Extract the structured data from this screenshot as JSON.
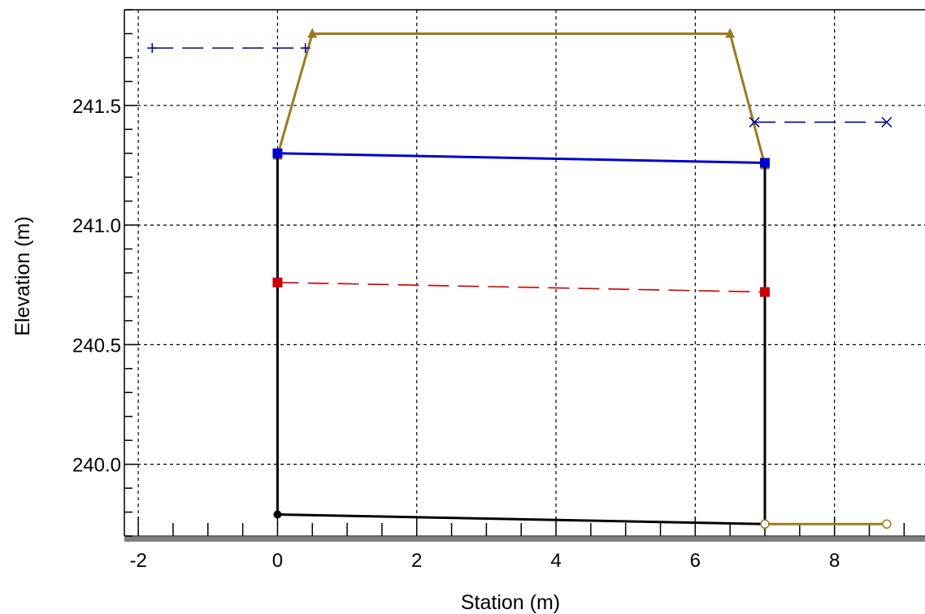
{
  "chart_data": {
    "type": "line",
    "xlabel": "Station (m)",
    "ylabel": "Elevation (m)",
    "xlim": [
      -2.2,
      9.3
    ],
    "ylim": [
      239.7,
      241.9
    ],
    "xticks": [
      -2,
      0,
      2,
      4,
      6,
      8
    ],
    "xtick_labels": [
      "-2",
      "0",
      "2",
      "4",
      "6",
      "8"
    ],
    "yticks": [
      240.0,
      240.5,
      241.0,
      241.5
    ],
    "ytick_labels": [
      "240.0",
      "240.5",
      "241.0",
      "241.5"
    ],
    "x_minor_step": 0.5,
    "grid": true,
    "colors": {
      "structure": "#9a7a1c",
      "walls": "#000000",
      "water_surface": "#0000cc",
      "energy_grade": "#cc0000",
      "headwater": "#000099",
      "tailwater": "#000099",
      "downstream_bed": "#9a7a1c",
      "grid": "#000000"
    },
    "series": [
      {
        "key": "structure",
        "marker": "triangle",
        "style": "solid",
        "x": [
          0.0,
          0.5,
          6.5,
          7.0
        ],
        "y": [
          241.29,
          241.8,
          241.8,
          241.25
        ]
      },
      {
        "key": "left_wall",
        "marker": "none",
        "style": "solid",
        "x": [
          0.0,
          0.0
        ],
        "y": [
          239.79,
          241.31
        ]
      },
      {
        "key": "right_wall",
        "marker": "none",
        "style": "solid",
        "x": [
          7.0,
          7.0
        ],
        "y": [
          239.75,
          241.27
        ]
      },
      {
        "key": "bed",
        "marker": "circle",
        "style": "solid",
        "x": [
          0.0,
          7.0
        ],
        "y": [
          239.79,
          239.75
        ]
      },
      {
        "key": "water_surface",
        "marker": "square",
        "style": "solid",
        "x": [
          0.0,
          7.0
        ],
        "y": [
          241.3,
          241.26
        ]
      },
      {
        "key": "energy_grade",
        "marker": "square",
        "style": "dashed",
        "x": [
          0.0,
          7.0
        ],
        "y": [
          240.76,
          240.72
        ]
      },
      {
        "key": "headwater",
        "marker": "plus",
        "style": "dashed",
        "x": [
          -1.8,
          0.4
        ],
        "y": [
          241.74,
          241.74
        ]
      },
      {
        "key": "tailwater",
        "marker": "x",
        "style": "dashed",
        "x": [
          6.85,
          8.75
        ],
        "y": [
          241.43,
          241.43
        ]
      },
      {
        "key": "downstream_bed",
        "marker": "open-circle",
        "style": "solid",
        "x": [
          7.0,
          8.75
        ],
        "y": [
          239.75,
          239.75
        ]
      }
    ]
  }
}
